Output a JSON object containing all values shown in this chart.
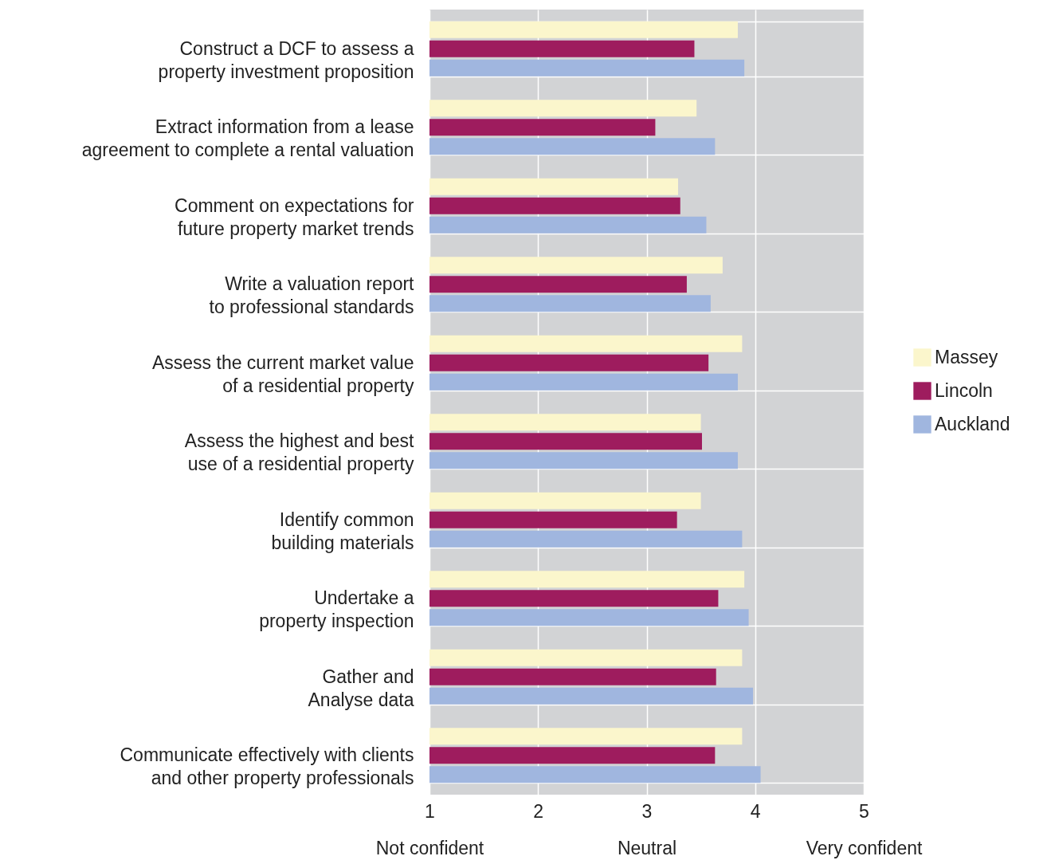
{
  "chart_data": {
    "type": "bar",
    "orientation": "horizontal",
    "categories": [
      "Construct a DCF to assess a property investment proposition",
      "Extract information from a lease agreement to complete a rental valuation",
      "Comment on expectations for future property market trends",
      "Write a valuation report to professional standards",
      "Assess the current market value of a residential property",
      "Assess the highest and best use of a residential property",
      "Identify common building materials",
      "Undertake a property inspection",
      "Gather and Analyse data",
      "Communicate effectively with clients and other property professionals"
    ],
    "series": [
      {
        "name": "Massey",
        "color": "#fbf6cc",
        "values": [
          3.84,
          3.46,
          3.29,
          3.7,
          3.88,
          3.5,
          3.5,
          3.9,
          3.88,
          3.88
        ]
      },
      {
        "name": "Lincoln",
        "color": "#9e1c5e",
        "values": [
          3.44,
          3.08,
          3.31,
          3.37,
          3.57,
          3.51,
          3.28,
          3.66,
          3.64,
          3.63
        ]
      },
      {
        "name": "Auckland",
        "color": "#a0b6df",
        "values": [
          3.9,
          3.63,
          3.55,
          3.59,
          3.84,
          3.84,
          3.88,
          3.94,
          3.98,
          4.05
        ]
      }
    ],
    "xlim": [
      1,
      5
    ],
    "xticks": [
      1,
      2,
      3,
      4,
      5
    ],
    "annotations": [
      "Not confident",
      "Neutral",
      "Very confident"
    ],
    "grid": true,
    "legend": "right"
  }
}
